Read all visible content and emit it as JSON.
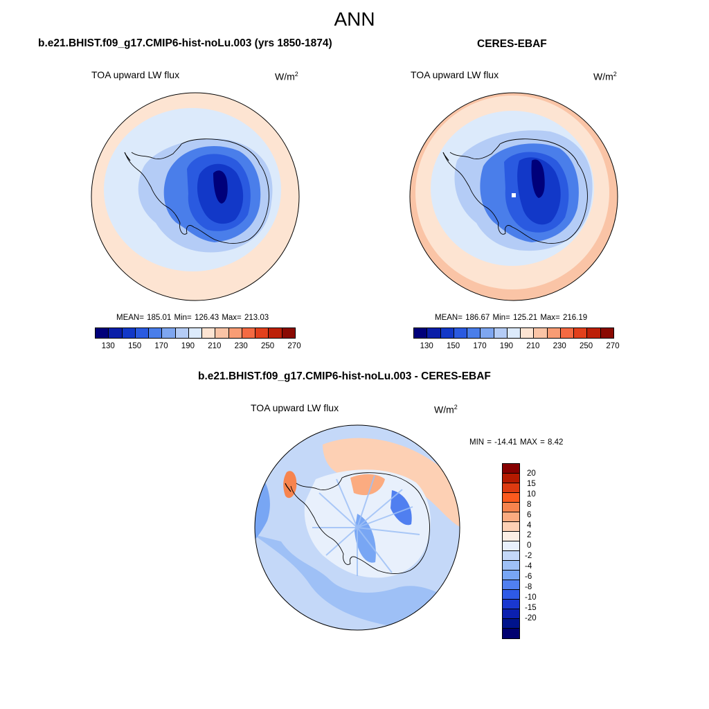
{
  "figure": {
    "title": "ANN"
  },
  "panel_model": {
    "title": "b.e21.BHIST.f09_g17.CMIP6-hist-noLu.003 (yrs 1850-1874)",
    "variable": "TOA upward LW flux",
    "unit_base": "W/m",
    "unit_exp": "2",
    "stats": "MEAN= 185.01  Min= 126.43  Max= 213.03"
  },
  "panel_obs": {
    "title": "CERES-EBAF",
    "variable": "TOA upward LW flux",
    "unit_base": "W/m",
    "unit_exp": "2",
    "stats": "MEAN= 186.67  Min= 125.21  Max= 216.19"
  },
  "panel_diff": {
    "title": "b.e21.BHIST.f09_g17.CMIP6-hist-noLu.003 - CERES-EBAF",
    "variable": "TOA upward LW flux",
    "unit_base": "W/m",
    "unit_exp": "2",
    "stats": "MIN = -14.41 MAX =   8.42"
  },
  "colorbar_abs": {
    "colors": [
      "#00007a",
      "#0a1ea8",
      "#1238c8",
      "#2a5ae0",
      "#4a7eea",
      "#7ea6f0",
      "#b4ccf6",
      "#dceafb",
      "#fde4d2",
      "#fac4a6",
      "#f89c74",
      "#f46a42",
      "#e2401c",
      "#bc2008",
      "#8a0a02"
    ],
    "tick_labels": [
      "130",
      "150",
      "170",
      "190",
      "210",
      "230",
      "250",
      "270"
    ]
  },
  "colorbar_diff": {
    "colors": [
      "#870000",
      "#b51a00",
      "#dd3a10",
      "#fb5a1e",
      "#f7844e",
      "#fbab80",
      "#fdd0b4",
      "#fbeee4",
      "#e8f0fc",
      "#c4d8f8",
      "#9ec0f6",
      "#78a6f4",
      "#507ff0",
      "#2e5ae6",
      "#1a38d0",
      "#0b20b0",
      "#00138c",
      "#000070"
    ],
    "labels": [
      "20",
      "15",
      "10",
      "8",
      "6",
      "4",
      "2",
      "0",
      "-2",
      "-4",
      "-6",
      "-8",
      "-10",
      "-15",
      "-20"
    ]
  },
  "chart_data": {
    "type": "heatmap",
    "projection": "south polar stereographic",
    "panels": [
      {
        "name": "model",
        "mean": 185.01,
        "min": 126.43,
        "max": 213.03,
        "colorbar_range": [
          120,
          280
        ]
      },
      {
        "name": "CERES-EBAF",
        "mean": 186.67,
        "min": 125.21,
        "max": 216.19,
        "colorbar_range": [
          120,
          280
        ]
      },
      {
        "name": "difference",
        "min": -14.41,
        "max": 8.42,
        "contour_levels": [
          -20,
          -15,
          -10,
          -8,
          -6,
          -4,
          -2,
          0,
          2,
          4,
          6,
          8,
          10,
          15,
          20
        ]
      }
    ]
  }
}
